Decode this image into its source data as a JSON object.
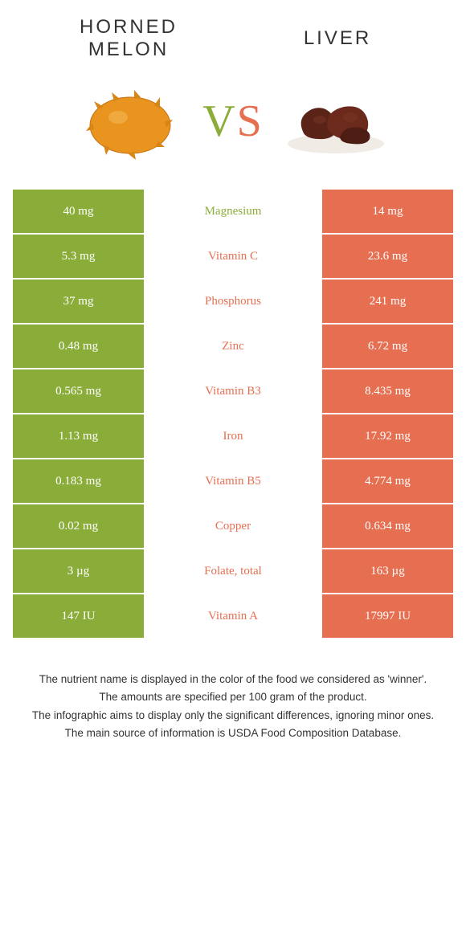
{
  "colors": {
    "green": "#8aad3a",
    "orange": "#e76f51",
    "text": "#333333"
  },
  "header": {
    "left_title": "HORNED MELON",
    "right_title": "LIVER",
    "vs_v": "V",
    "vs_s": "S"
  },
  "rows": [
    {
      "left": "40 mg",
      "nutrient": "Magnesium",
      "right": "14 mg",
      "winner": "left"
    },
    {
      "left": "5.3 mg",
      "nutrient": "Vitamin C",
      "right": "23.6 mg",
      "winner": "right"
    },
    {
      "left": "37 mg",
      "nutrient": "Phosphorus",
      "right": "241 mg",
      "winner": "right"
    },
    {
      "left": "0.48 mg",
      "nutrient": "Zinc",
      "right": "6.72 mg",
      "winner": "right"
    },
    {
      "left": "0.565 mg",
      "nutrient": "Vitamin B3",
      "right": "8.435 mg",
      "winner": "right"
    },
    {
      "left": "1.13 mg",
      "nutrient": "Iron",
      "right": "17.92 mg",
      "winner": "right"
    },
    {
      "left": "0.183 mg",
      "nutrient": "Vitamin B5",
      "right": "4.774 mg",
      "winner": "right"
    },
    {
      "left": "0.02 mg",
      "nutrient": "Copper",
      "right": "0.634 mg",
      "winner": "right"
    },
    {
      "left": "3 µg",
      "nutrient": "Folate, total",
      "right": "163 µg",
      "winner": "right"
    },
    {
      "left": "147 IU",
      "nutrient": "Vitamin A",
      "right": "17997 IU",
      "winner": "right"
    }
  ],
  "footer": {
    "line1": "The nutrient name is displayed in the color of the food we considered as 'winner'.",
    "line2": "The amounts are specified per 100 gram of the product.",
    "line3": "The infographic aims to display only the significant differences, ignoring minor ones.",
    "line4": "The main source of information is USDA Food Composition Database."
  }
}
